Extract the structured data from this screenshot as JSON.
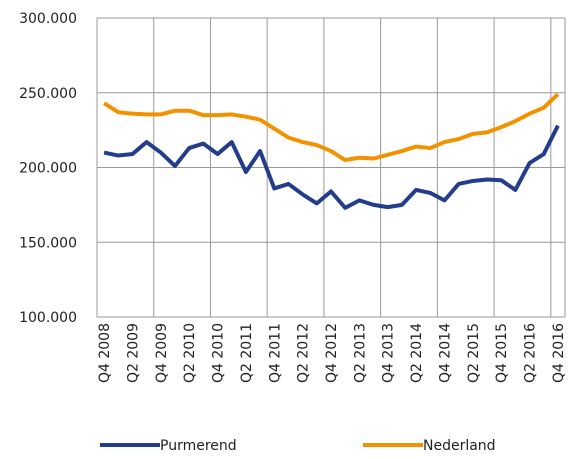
{
  "chart_data": {
    "type": "line",
    "categories": [
      "Q4 2008",
      null,
      "Q2 2009",
      null,
      "Q4 2009",
      null,
      "Q2 2010",
      null,
      "Q4 2010",
      null,
      "Q2 2011",
      null,
      "Q4 2011",
      null,
      "Q2 2012",
      null,
      "Q4 2012",
      null,
      "Q2 2013",
      null,
      "Q4 2013",
      null,
      "Q2 2014",
      null,
      "Q4 2014",
      null,
      "Q2 2015",
      null,
      "Q4 2015",
      null,
      "Q2 2016",
      null,
      "Q4 2016"
    ],
    "series": [
      {
        "name": "Purmerend",
        "color": "#233d8c",
        "values": [
          210000,
          208000,
          209000,
          217000,
          210000,
          201000,
          213000,
          216000,
          209000,
          217000,
          197000,
          211000,
          186000,
          189000,
          182000,
          176000,
          184000,
          173000,
          178000,
          175000,
          173500,
          175000,
          185000,
          183000,
          178000,
          189000,
          191000,
          192000,
          191500,
          185000,
          203000,
          209000,
          228000
        ]
      },
      {
        "name": "Nederland",
        "color": "#f39200",
        "values": [
          243000,
          237000,
          236000,
          235500,
          235500,
          238000,
          238000,
          235000,
          235000,
          235500,
          234000,
          232000,
          226000,
          220000,
          217000,
          215000,
          211000,
          205000,
          206500,
          206000,
          208500,
          211000,
          214000,
          213000,
          217000,
          219000,
          222500,
          223500,
          227000,
          231000,
          236000,
          240000,
          249000
        ]
      }
    ],
    "ylim": [
      100000,
      300000
    ],
    "yticks": [
      {
        "value": 100000,
        "label": "100.000"
      },
      {
        "value": 150000,
        "label": "150.000"
      },
      {
        "value": 200000,
        "label": "200.000"
      },
      {
        "value": 250000,
        "label": "250.000"
      },
      {
        "value": 300000,
        "label": "300.000"
      }
    ],
    "grid": true
  }
}
